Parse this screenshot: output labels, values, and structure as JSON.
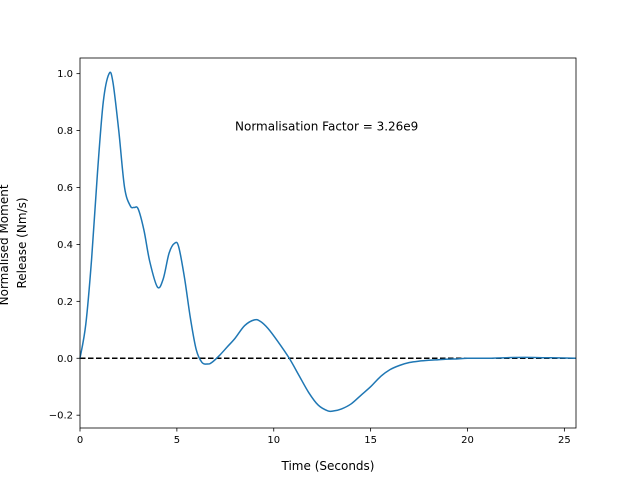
{
  "chart_data": {
    "type": "line",
    "title": "",
    "xlabel": "Time (Seconds)",
    "ylabel_lines": [
      "Normalised Moment",
      "Release (Nm/s)"
    ],
    "xlim": [
      0,
      25.6
    ],
    "ylim": [
      -0.245,
      1.055
    ],
    "xticks": [
      0,
      5,
      10,
      15,
      20,
      25
    ],
    "xtick_labels": [
      "0",
      "5",
      "10",
      "15",
      "20",
      "25"
    ],
    "yticks": [
      -0.2,
      0.0,
      0.2,
      0.4,
      0.6,
      0.8,
      1.0
    ],
    "ytick_labels": [
      "−0.2",
      "0.0",
      "0.2",
      "0.4",
      "0.6",
      "0.8",
      "1.0"
    ],
    "grid": false,
    "annotation": {
      "text": "Normalisation Factor = 3.26e9",
      "x": 8.0,
      "y": 0.8
    },
    "reference_line": {
      "y": 0,
      "style": "dashed",
      "color": "#000000"
    },
    "series": [
      {
        "color": "#1f77b4",
        "x": [
          0,
          0.3,
          0.6,
          0.9,
          1.2,
          1.5,
          1.7,
          2.0,
          2.3,
          2.6,
          2.8,
          3.0,
          3.3,
          3.6,
          4.0,
          4.3,
          4.6,
          4.9,
          5.1,
          5.4,
          5.7,
          6.0,
          6.3,
          6.6,
          6.8,
          7.2,
          7.6,
          8.0,
          8.5,
          9.0,
          9.3,
          9.7,
          10.2,
          10.8,
          11.3,
          11.8,
          12.3,
          12.8,
          13.1,
          13.5,
          14.0,
          14.5,
          15.0,
          15.5,
          16.0,
          16.5,
          17.0,
          17.5,
          18.0,
          18.5,
          19.0,
          19.5,
          20.0,
          21.0,
          22.0,
          23.0,
          24.0,
          25.0,
          25.6
        ],
        "y": [
          0.0,
          0.12,
          0.35,
          0.65,
          0.9,
          1.0,
          0.97,
          0.8,
          0.6,
          0.535,
          0.53,
          0.525,
          0.45,
          0.34,
          0.25,
          0.28,
          0.37,
          0.405,
          0.39,
          0.28,
          0.14,
          0.03,
          -0.015,
          -0.02,
          -0.015,
          0.01,
          0.04,
          0.07,
          0.115,
          0.135,
          0.13,
          0.105,
          0.06,
          0.0,
          -0.06,
          -0.12,
          -0.165,
          -0.185,
          -0.185,
          -0.178,
          -0.16,
          -0.13,
          -0.1,
          -0.065,
          -0.04,
          -0.025,
          -0.015,
          -0.01,
          -0.007,
          -0.005,
          -0.003,
          -0.002,
          0.0,
          0.0,
          0.002,
          0.003,
          0.002,
          0.001,
          0.0
        ]
      }
    ]
  }
}
